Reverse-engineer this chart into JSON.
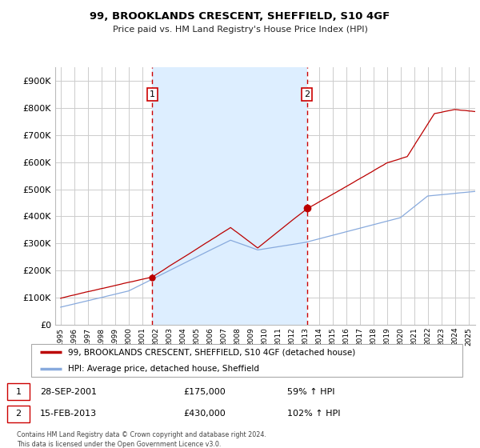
{
  "title": "99, BROOKLANDS CRESCENT, SHEFFIELD, S10 4GF",
  "subtitle": "Price paid vs. HM Land Registry's House Price Index (HPI)",
  "ylim": [
    0,
    950000
  ],
  "yticks": [
    0,
    100000,
    200000,
    300000,
    400000,
    500000,
    600000,
    700000,
    800000,
    900000
  ],
  "ytick_labels": [
    "£0",
    "£100K",
    "£200K",
    "£300K",
    "£400K",
    "£500K",
    "£600K",
    "£700K",
    "£800K",
    "£900K"
  ],
  "sale1_date": 2001.75,
  "sale1_price": 175000,
  "sale1_label": "1",
  "sale2_date": 2013.12,
  "sale2_price": 430000,
  "sale2_label": "2",
  "line_color_property": "#bb0000",
  "line_color_hpi": "#88aadd",
  "vline_color": "#cc0000",
  "shade_color": "#ddeeff",
  "background_color": "#ffffff",
  "grid_color": "#cccccc",
  "legend_label_property": "99, BROOKLANDS CRESCENT, SHEFFIELD, S10 4GF (detached house)",
  "legend_label_hpi": "HPI: Average price, detached house, Sheffield",
  "annotation1_date": "28-SEP-2001",
  "annotation1_price": "£175,000",
  "annotation1_hpi": "59% ↑ HPI",
  "annotation2_date": "15-FEB-2013",
  "annotation2_price": "£430,000",
  "annotation2_hpi": "102% ↑ HPI",
  "footer": "Contains HM Land Registry data © Crown copyright and database right 2024.\nThis data is licensed under the Open Government Licence v3.0."
}
